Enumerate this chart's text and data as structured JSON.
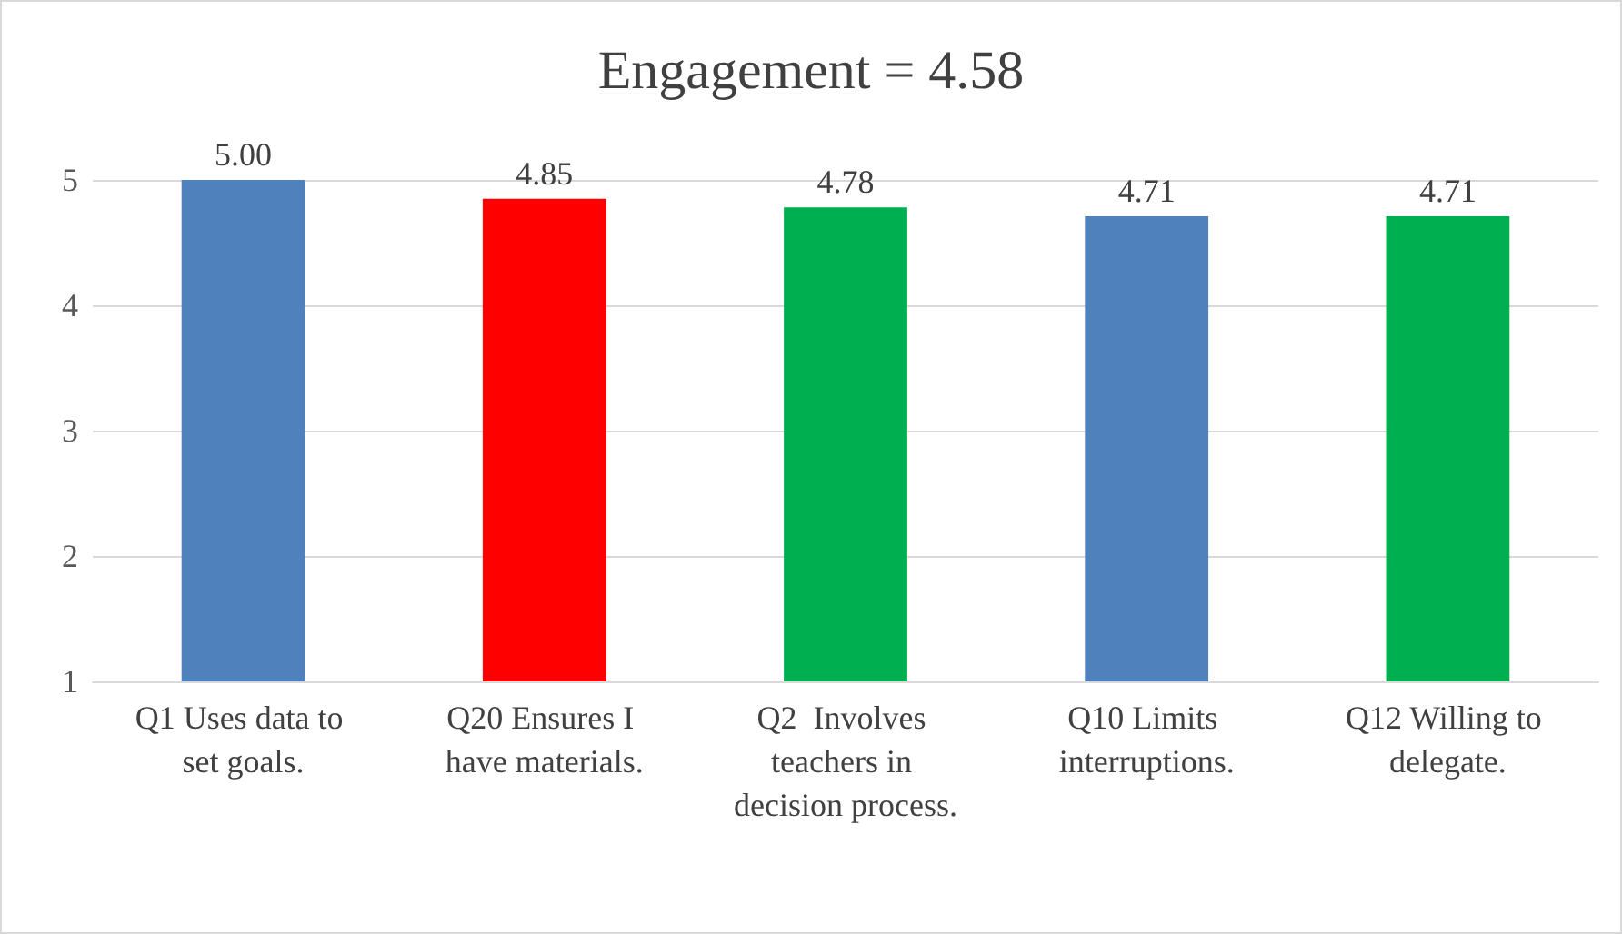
{
  "chart_data": {
    "type": "bar",
    "title": "Engagement = 4.58",
    "categories": [
      "Q1 Uses data to set goals.",
      "Q20 Ensures I have materials.",
      "Q2  Involves teachers in decision process.",
      "Q10 Limits interruptions.",
      "Q12 Willing to delegate."
    ],
    "values": [
      5.0,
      4.85,
      4.78,
      4.71,
      4.71
    ],
    "colors": [
      "#4f81bd",
      "#ff0000",
      "#00b050",
      "#4f81bd",
      "#00b050"
    ],
    "value_labels": [
      "5.00",
      "4.85",
      "4.78",
      "4.71",
      "4.71"
    ],
    "ylim": [
      1,
      5
    ],
    "yticks": [
      1,
      2,
      3,
      4,
      5
    ],
    "grid": "y"
  }
}
